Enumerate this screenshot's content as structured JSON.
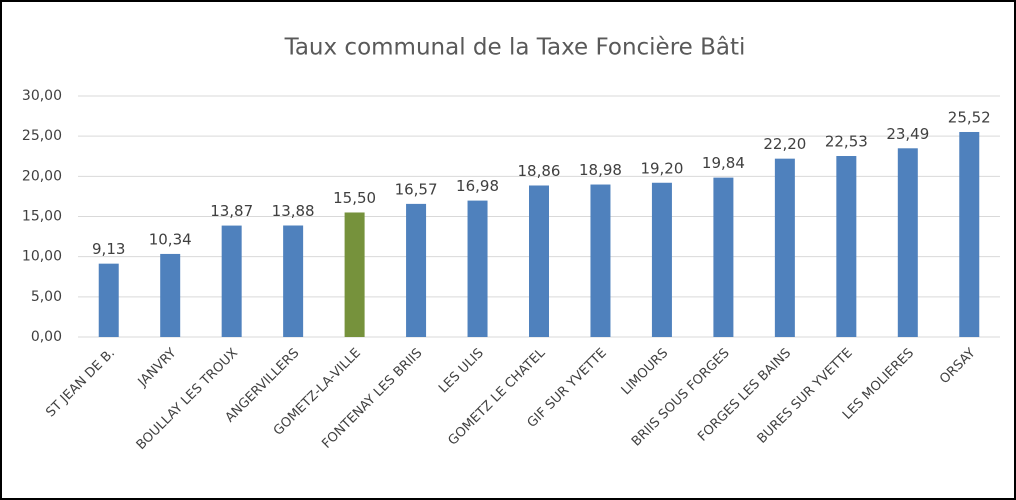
{
  "chart_data": {
    "type": "bar",
    "title": "Taux communal de la Taxe Foncière Bâti",
    "categories": [
      "ST JEAN DE B.",
      "JANVRY",
      "BOULLAY LES TROUX",
      "ANGERVILLERS",
      "GOMETZ-LA-VILLE",
      "FONTENAY LES BRIIS",
      "LES ULIS",
      "GOMETZ LE CHATEL",
      "GIF SUR YVETTE",
      "LIMOURS",
      "BRIIS SOUS FORGES",
      "FORGES LES BAINS",
      "BURES SUR YVETTE",
      "LES MOLIERES",
      "ORSAY"
    ],
    "values": [
      9.13,
      10.34,
      13.87,
      13.88,
      15.5,
      16.57,
      16.98,
      18.86,
      18.98,
      19.2,
      19.84,
      22.2,
      22.53,
      23.49,
      25.52
    ],
    "value_labels": [
      "9,13",
      "10,34",
      "13,87",
      "13,88",
      "15,50",
      "16,57",
      "16,98",
      "18,86",
      "18,98",
      "19,20",
      "19,84",
      "22,20",
      "22,53",
      "23,49",
      "25,52"
    ],
    "colors": [
      "#4f81bd",
      "#4f81bd",
      "#4f81bd",
      "#4f81bd",
      "#76923c",
      "#4f81bd",
      "#4f81bd",
      "#4f81bd",
      "#4f81bd",
      "#4f81bd",
      "#4f81bd",
      "#4f81bd",
      "#4f81bd",
      "#4f81bd",
      "#4f81bd"
    ],
    "ylim": [
      0,
      30
    ],
    "yticks": [
      {
        "value": 0,
        "label": "0,00"
      },
      {
        "value": 5,
        "label": "5,00"
      },
      {
        "value": 10,
        "label": "10,00"
      },
      {
        "value": 15,
        "label": "15,00"
      },
      {
        "value": 20,
        "label": "20,00"
      },
      {
        "value": 25,
        "label": "25,00"
      },
      {
        "value": 30,
        "label": "30,00"
      }
    ],
    "grid": true
  }
}
